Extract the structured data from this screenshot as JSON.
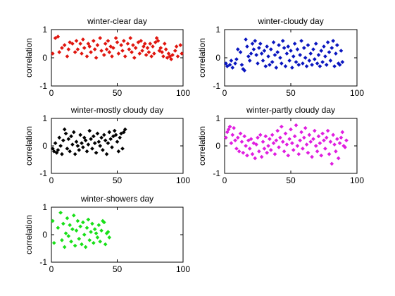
{
  "figure": {
    "background": "#ffffff"
  },
  "chart_data": [
    {
      "type": "scatter",
      "title": "winter-clear day",
      "ylabel": "correlation",
      "xlim": [
        0,
        100
      ],
      "ylim": [
        -1,
        1
      ],
      "xticks": [
        0,
        50,
        100
      ],
      "yticks": [
        -1,
        0,
        1
      ],
      "marker": "diamond",
      "color": "#e0160f",
      "series": [
        {
          "x": [
            1,
            3,
            5,
            6,
            8,
            10,
            12,
            13,
            14,
            16,
            18,
            19,
            20,
            22,
            23,
            24,
            25,
            27,
            28,
            29,
            30,
            32,
            33,
            34,
            35,
            37,
            38,
            40,
            41,
            42,
            43,
            44,
            45,
            46,
            47,
            49,
            50,
            51,
            53,
            54,
            55,
            56,
            58,
            59,
            60,
            61,
            62,
            63,
            64,
            66,
            67,
            68,
            69,
            70,
            71,
            72,
            73,
            74,
            75,
            76,
            77,
            78,
            79,
            80,
            81,
            82,
            83,
            84,
            85,
            86,
            87,
            88,
            89,
            90,
            91,
            92,
            94,
            95,
            96,
            98,
            99
          ],
          "y": [
            0.15,
            0.7,
            0.75,
            0.2,
            0.35,
            0.45,
            0.05,
            0.3,
            0.55,
            0.5,
            0.2,
            0.6,
            0.3,
            0.5,
            0.15,
            0.65,
            0.35,
            0.05,
            0.5,
            0.4,
            0.2,
            0.6,
            0.3,
            0.0,
            0.45,
            0.7,
            0.25,
            0.1,
            0.5,
            0.3,
            0.6,
            0.2,
            0.4,
            0.05,
            0.35,
            0.7,
            0.55,
            0.15,
            0.45,
            0.25,
            0.6,
            0.05,
            0.5,
            0.3,
            0.7,
            0.2,
            0.45,
            0.0,
            0.35,
            0.55,
            0.15,
            0.6,
            0.25,
            0.4,
            0.5,
            0.1,
            0.35,
            0.2,
            0.5,
            0.05,
            0.4,
            0.15,
            0.55,
            0.7,
            0.6,
            0.25,
            0.35,
            0.2,
            0.05,
            0.5,
            0.3,
            0.0,
            0.15,
            0.05,
            -0.05,
            0.1,
            0.25,
            0.4,
            0.05,
            0.45,
            0.15
          ]
        }
      ]
    },
    {
      "type": "scatter",
      "title": "winter-cloudy day",
      "ylabel": "correlation",
      "xlim": [
        0,
        100
      ],
      "ylim": [
        -1,
        1
      ],
      "xticks": [
        0,
        50,
        100
      ],
      "yticks": [
        -1,
        0,
        1
      ],
      "marker": "diamond",
      "color": "#0a16c0",
      "series": [
        {
          "x": [
            1,
            2,
            4,
            5,
            6,
            8,
            9,
            10,
            12,
            13,
            14,
            15,
            16,
            17,
            18,
            19,
            20,
            21,
            22,
            23,
            24,
            25,
            26,
            27,
            28,
            29,
            30,
            31,
            32,
            33,
            34,
            35,
            36,
            37,
            38,
            39,
            40,
            41,
            42,
            43,
            44,
            45,
            46,
            47,
            48,
            49,
            50,
            51,
            52,
            53,
            54,
            55,
            56,
            57,
            58,
            59,
            60,
            61,
            62,
            63,
            64,
            65,
            66,
            67,
            68,
            69,
            70,
            71,
            72,
            73,
            74,
            75,
            76,
            77,
            78,
            79,
            80,
            81,
            82,
            83,
            84,
            85,
            86,
            87,
            88,
            89
          ],
          "y": [
            -0.2,
            -0.3,
            -0.25,
            -0.1,
            -0.35,
            -0.2,
            -0.05,
            0.3,
            0.2,
            -0.25,
            -0.4,
            -0.45,
            0.65,
            0.4,
            0.05,
            -0.1,
            0.15,
            0.5,
            0.3,
            0.6,
            0.1,
            -0.2,
            0.35,
            0.5,
            0.15,
            -0.1,
            0.25,
            -0.3,
            0.4,
            0.05,
            -0.25,
            0.3,
            -0.15,
            0.55,
            0.1,
            -0.35,
            0.2,
            0.45,
            0.0,
            -0.2,
            0.6,
            0.35,
            -0.3,
            0.15,
            0.4,
            -0.1,
            0.25,
            -0.35,
            0.05,
            0.5,
            -0.15,
            0.3,
            -0.25,
            0.1,
            0.6,
            -0.2,
            0.35,
            0.0,
            -0.3,
            0.45,
            -0.1,
            0.15,
            -0.25,
            0.3,
            -0.05,
            0.5,
            -0.2,
            0.1,
            -0.3,
            0.25,
            -0.15,
            0.4,
            0.05,
            -0.25,
            0.55,
            0.2,
            -0.1,
            0.35,
            0.6,
            -0.3,
            0.15,
            0.45,
            -0.2,
            -0.25,
            0.25,
            -0.15
          ]
        }
      ]
    },
    {
      "type": "scatter",
      "title": "winter-mostly cloudy day",
      "ylabel": "correlation",
      "xlim": [
        0,
        100
      ],
      "ylim": [
        -1,
        1
      ],
      "xticks": [
        0,
        50,
        100
      ],
      "yticks": [
        -1,
        0,
        1
      ],
      "marker": "diamond",
      "color": "#000000",
      "series": [
        {
          "x": [
            1,
            2,
            3,
            4,
            5,
            6,
            7,
            8,
            9,
            10,
            11,
            12,
            13,
            14,
            15,
            16,
            17,
            18,
            19,
            20,
            21,
            22,
            23,
            24,
            25,
            26,
            27,
            28,
            29,
            30,
            31,
            32,
            33,
            34,
            35,
            36,
            37,
            38,
            39,
            40,
            41,
            42,
            43,
            44,
            45,
            46,
            47,
            48,
            49,
            50,
            51,
            52,
            53,
            54,
            55,
            56
          ],
          "y": [
            -0.1,
            -0.2,
            0.1,
            -0.25,
            -0.15,
            0.3,
            0.0,
            -0.3,
            0.2,
            0.6,
            0.45,
            -0.1,
            0.25,
            -0.2,
            0.35,
            0.05,
            0.5,
            -0.3,
            0.15,
            0.0,
            -0.15,
            0.4,
            0.1,
            -0.05,
            0.3,
            0.2,
            -0.2,
            0.05,
            0.55,
            0.25,
            -0.1,
            0.35,
            0.1,
            -0.25,
            0.45,
            0.15,
            0.0,
            0.3,
            -0.15,
            0.4,
            0.2,
            -0.3,
            0.1,
            0.5,
            0.25,
            -0.05,
            0.35,
            0.55,
            0.4,
            0.15,
            -0.2,
            0.3,
            0.45,
            -0.1,
            0.5,
            0.6
          ]
        }
      ]
    },
    {
      "type": "scatter",
      "title": "winter-partly cloudy day",
      "ylabel": "correlation",
      "xlim": [
        0,
        100
      ],
      "ylim": [
        -1,
        1
      ],
      "xticks": [
        0,
        50,
        100
      ],
      "yticks": [
        -1,
        0,
        1
      ],
      "marker": "diamond",
      "color": "#e01ee0",
      "series": [
        {
          "x": [
            1,
            2,
            3,
            4,
            5,
            6,
            7,
            8,
            9,
            10,
            11,
            12,
            13,
            14,
            15,
            16,
            17,
            18,
            19,
            20,
            21,
            22,
            23,
            24,
            25,
            26,
            27,
            28,
            29,
            30,
            31,
            32,
            33,
            34,
            35,
            36,
            37,
            38,
            39,
            40,
            41,
            42,
            43,
            44,
            45,
            46,
            47,
            48,
            49,
            50,
            51,
            52,
            53,
            54,
            55,
            56,
            57,
            58,
            59,
            60,
            61,
            62,
            63,
            64,
            65,
            66,
            67,
            68,
            69,
            70,
            71,
            72,
            73,
            74,
            75,
            76,
            77,
            78,
            79,
            80,
            81,
            82,
            83,
            84,
            85,
            86,
            87,
            88,
            89,
            90,
            91,
            92
          ],
          "y": [
            0.3,
            0.5,
            0.6,
            0.7,
            0.1,
            0.4,
            0.65,
            0.2,
            -0.1,
            0.3,
            -0.2,
            0.45,
            0.15,
            -0.25,
            0.35,
            0.0,
            -0.35,
            0.2,
            -0.1,
            0.25,
            -0.3,
            0.1,
            -0.45,
            0.05,
            0.3,
            -0.2,
            0.4,
            -0.4,
            0.15,
            -0.1,
            0.35,
            -0.25,
            0.0,
            0.25,
            -0.15,
            0.4,
            0.1,
            -0.3,
            0.2,
            0.55,
            -0.05,
            0.3,
            0.7,
            0.15,
            -0.2,
            0.45,
            0.05,
            -0.35,
            0.25,
            0.6,
            0.1,
            -0.15,
            0.35,
            0.75,
            0.0,
            -0.3,
            0.2,
            0.5,
            -0.1,
            0.3,
            0.65,
            0.05,
            -0.25,
            0.4,
            0.15,
            -0.4,
            0.25,
            0.55,
            0.0,
            -0.2,
            0.35,
            0.1,
            -0.35,
            0.45,
            0.2,
            -0.1,
            0.3,
            0.55,
            -0.3,
            0.15,
            -0.65,
            0.4,
            0.05,
            -0.2,
            0.25,
            -0.45,
            0.1,
            0.3,
            0.5,
            0.0,
            -0.05,
            0.2
          ]
        }
      ]
    },
    {
      "type": "scatter",
      "title": "winter-showers day",
      "ylabel": "correlation",
      "xlim": [
        0,
        100
      ],
      "ylim": [
        -1,
        1
      ],
      "xticks": [
        0,
        50,
        100
      ],
      "yticks": [
        -1,
        0,
        1
      ],
      "marker": "diamond",
      "color": "#18e018",
      "series": [
        {
          "x": [
            1,
            2,
            5,
            7,
            8,
            9,
            10,
            11,
            12,
            13,
            14,
            15,
            16,
            17,
            18,
            19,
            20,
            21,
            22,
            23,
            24,
            25,
            26,
            27,
            28,
            29,
            30,
            31,
            32,
            33,
            34,
            35,
            36,
            37,
            38,
            39,
            40,
            41,
            42,
            43,
            44
          ],
          "y": [
            0.5,
            -0.3,
            0.25,
            0.8,
            -0.2,
            0.4,
            -0.45,
            0.05,
            0.6,
            -0.05,
            0.35,
            -0.25,
            0.2,
            0.7,
            -0.4,
            0.15,
            0.5,
            -0.15,
            0.3,
            -0.35,
            0.45,
            0.0,
            -0.45,
            0.25,
            0.55,
            -0.2,
            0.1,
            0.4,
            -0.3,
            0.2,
            0.05,
            -0.1,
            0.35,
            -0.25,
            0.15,
            0.5,
            0.45,
            -0.35,
            0.05,
            0.1,
            -0.1
          ]
        }
      ]
    }
  ]
}
